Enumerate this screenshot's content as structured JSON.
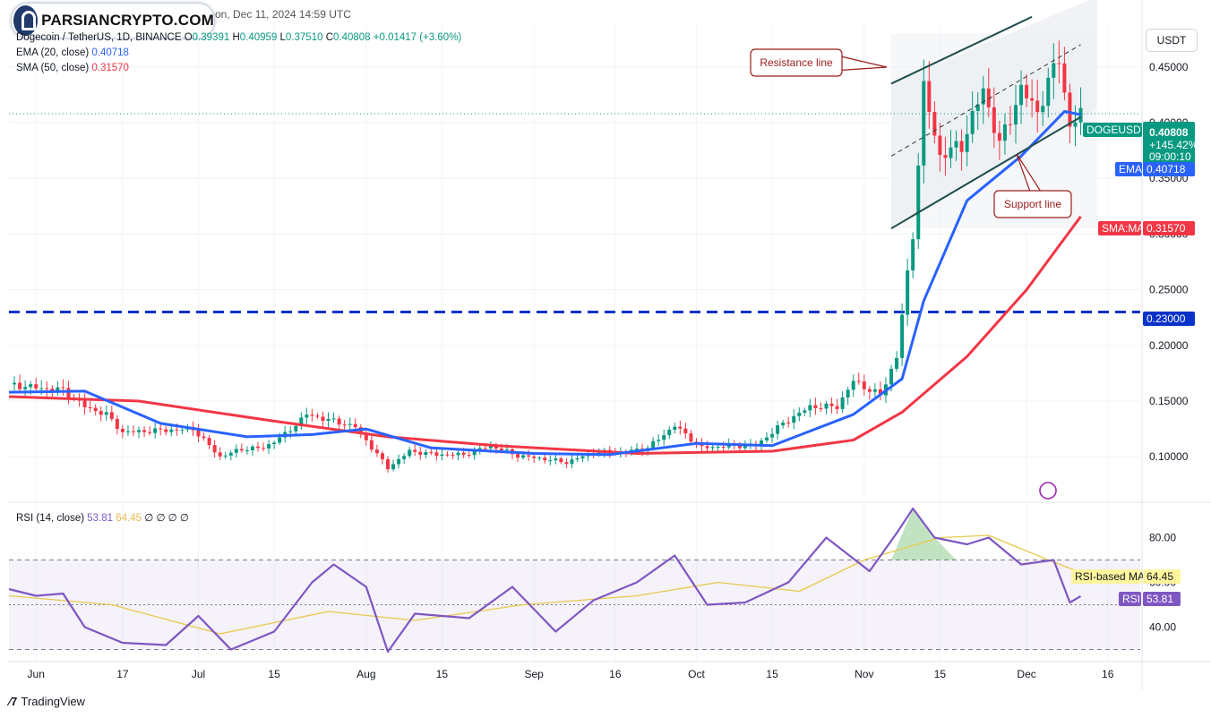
{
  "header": {
    "title_tail": "on, Dec 11, 2024 14:59 UTC",
    "symbol": "Dogecoin / TetherUS, 1D, BINANCE",
    "ohlc": [
      {
        "k": "O",
        "v": "0.39391"
      },
      {
        "k": "H",
        "v": "0.40959"
      },
      {
        "k": "L",
        "v": "0.37510"
      },
      {
        "k": "C",
        "v": "0.40808"
      }
    ],
    "change": "+0.01417 (+3.60%)",
    "ema_label": "EMA (20, close)",
    "ema_value": "0.40718",
    "sma_label": "SMA (50, close)",
    "sma_value": "0.31570",
    "rsi_label": "RSI (14, close)",
    "rsi_value": "53.81",
    "rsi_ma_value": "64.45",
    "rsi_extras": "∅ ∅ ∅ ∅"
  },
  "watermark": {
    "text": "PARSIANCRYPTO.COM"
  },
  "currency": "USDT",
  "footer": {
    "brand": "TradingView"
  },
  "annotations": {
    "resistance": "Resistance line",
    "support": "Support line"
  },
  "badges": {
    "symbol": "DOGEUSDT",
    "price": "0.40808",
    "change_pct": "+145.42%",
    "countdown": "09:00:10",
    "ema_tag": "EMA",
    "ema_val": "0.40718",
    "sma_tag": "SMA:MA",
    "sma_val": "0.31570",
    "level": "0.23000",
    "rsi_ma_tag": "RSI-based MA",
    "rsi_ma_val": "64.45",
    "rsi_tag": "RSI",
    "rsi_val": "53.81"
  },
  "colors": {
    "up": "#089981",
    "down": "#f23645",
    "ema": "#2962ff",
    "sma": "#f23645",
    "rsi": "#7e57c2",
    "rsi_ma": "#e8c94b",
    "hline": "#0a32c8",
    "channel": "#1f4e4e"
  },
  "chart_data": [
    {
      "type": "candlestick",
      "title": "Dogecoin / TetherUS, 1D, BINANCE",
      "x_ticks": [
        "Jun",
        "17",
        "Jul",
        "15",
        "Aug",
        "15",
        "Sep",
        "16",
        "Oct",
        "15",
        "Nov",
        "15",
        "Dec",
        "16"
      ],
      "y_ticks": [
        "0.45000",
        "0.40000",
        "0.35000",
        "0.30000",
        "0.25000",
        "0.20000",
        "0.15000",
        "0.10000"
      ],
      "y_range": [
        0.06,
        0.49
      ],
      "x_range": [
        "2024-05-27",
        "2024-12-22"
      ],
      "horizontal_line": 0.23,
      "closes": [
        {
          "date": "2024-05-27",
          "close": 0.165
        },
        {
          "date": "2024-06-01",
          "close": 0.162
        },
        {
          "date": "2024-06-06",
          "close": 0.16
        },
        {
          "date": "2024-06-10",
          "close": 0.145
        },
        {
          "date": "2024-06-14",
          "close": 0.138
        },
        {
          "date": "2024-06-17",
          "close": 0.122
        },
        {
          "date": "2024-06-21",
          "close": 0.123
        },
        {
          "date": "2024-06-25",
          "close": 0.124
        },
        {
          "date": "2024-06-30",
          "close": 0.125
        },
        {
          "date": "2024-07-05",
          "close": 0.1
        },
        {
          "date": "2024-07-09",
          "close": 0.107
        },
        {
          "date": "2024-07-13",
          "close": 0.108
        },
        {
          "date": "2024-07-17",
          "close": 0.12
        },
        {
          "date": "2024-07-21",
          "close": 0.138
        },
        {
          "date": "2024-07-26",
          "close": 0.132
        },
        {
          "date": "2024-07-30",
          "close": 0.127
        },
        {
          "date": "2024-08-05",
          "close": 0.09
        },
        {
          "date": "2024-08-09",
          "close": 0.105
        },
        {
          "date": "2024-08-14",
          "close": 0.102
        },
        {
          "date": "2024-08-19",
          "close": 0.102
        },
        {
          "date": "2024-08-24",
          "close": 0.11
        },
        {
          "date": "2024-08-29",
          "close": 0.101
        },
        {
          "date": "2024-09-03",
          "close": 0.098
        },
        {
          "date": "2024-09-07",
          "close": 0.095
        },
        {
          "date": "2024-09-12",
          "close": 0.104
        },
        {
          "date": "2024-09-17",
          "close": 0.104
        },
        {
          "date": "2024-09-22",
          "close": 0.108
        },
        {
          "date": "2024-09-27",
          "close": 0.128
        },
        {
          "date": "2024-10-02",
          "close": 0.108
        },
        {
          "date": "2024-10-07",
          "close": 0.11
        },
        {
          "date": "2024-10-12",
          "close": 0.11
        },
        {
          "date": "2024-10-17",
          "close": 0.13
        },
        {
          "date": "2024-10-22",
          "close": 0.145
        },
        {
          "date": "2024-10-27",
          "close": 0.145
        },
        {
          "date": "2024-10-30",
          "close": 0.168
        },
        {
          "date": "2024-11-04",
          "close": 0.155
        },
        {
          "date": "2024-11-07",
          "close": 0.19
        },
        {
          "date": "2024-11-10",
          "close": 0.3
        },
        {
          "date": "2024-11-12",
          "close": 0.43
        },
        {
          "date": "2024-11-15",
          "close": 0.37
        },
        {
          "date": "2024-11-19",
          "close": 0.38
        },
        {
          "date": "2024-11-23",
          "close": 0.43
        },
        {
          "date": "2024-11-26",
          "close": 0.38
        },
        {
          "date": "2024-11-30",
          "close": 0.43
        },
        {
          "date": "2024-12-03",
          "close": 0.41
        },
        {
          "date": "2024-12-07",
          "close": 0.46
        },
        {
          "date": "2024-12-09",
          "close": 0.395
        },
        {
          "date": "2024-12-11",
          "close": 0.408
        }
      ],
      "ema20": [
        {
          "date": "2024-05-27",
          "value": 0.158
        },
        {
          "date": "2024-06-10",
          "value": 0.159
        },
        {
          "date": "2024-06-24",
          "value": 0.13
        },
        {
          "date": "2024-07-10",
          "value": 0.118
        },
        {
          "date": "2024-07-22",
          "value": 0.12
        },
        {
          "date": "2024-08-01",
          "value": 0.125
        },
        {
          "date": "2024-08-13",
          "value": 0.108
        },
        {
          "date": "2024-09-01",
          "value": 0.103
        },
        {
          "date": "2024-09-15",
          "value": 0.102
        },
        {
          "date": "2024-10-01",
          "value": 0.112
        },
        {
          "date": "2024-10-15",
          "value": 0.11
        },
        {
          "date": "2024-10-30",
          "value": 0.138
        },
        {
          "date": "2024-11-08",
          "value": 0.17
        },
        {
          "date": "2024-11-12",
          "value": 0.24
        },
        {
          "date": "2024-11-20",
          "value": 0.33
        },
        {
          "date": "2024-11-30",
          "value": 0.37
        },
        {
          "date": "2024-12-08",
          "value": 0.41
        },
        {
          "date": "2024-12-11",
          "value": 0.40718
        }
      ],
      "sma50": [
        {
          "date": "2024-05-27",
          "value": 0.154
        },
        {
          "date": "2024-06-20",
          "value": 0.15
        },
        {
          "date": "2024-07-15",
          "value": 0.132
        },
        {
          "date": "2024-08-05",
          "value": 0.118
        },
        {
          "date": "2024-08-25",
          "value": 0.11
        },
        {
          "date": "2024-09-20",
          "value": 0.103
        },
        {
          "date": "2024-10-15",
          "value": 0.105
        },
        {
          "date": "2024-10-30",
          "value": 0.115
        },
        {
          "date": "2024-11-08",
          "value": 0.14
        },
        {
          "date": "2024-11-20",
          "value": 0.19
        },
        {
          "date": "2024-12-01",
          "value": 0.25
        },
        {
          "date": "2024-12-11",
          "value": 0.3157
        }
      ],
      "resistance_line": [
        {
          "date": "2024-11-06",
          "value": 0.435
        },
        {
          "date": "2024-12-02",
          "value": 0.495
        }
      ],
      "support_line": [
        {
          "date": "2024-11-06",
          "value": 0.305
        },
        {
          "date": "2024-12-11",
          "value": 0.405
        }
      ],
      "mid_line": [
        {
          "date": "2024-11-06",
          "value": 0.37
        },
        {
          "date": "2024-12-11",
          "value": 0.47
        }
      ]
    },
    {
      "type": "line",
      "title": "RSI (14, close)",
      "y_ticks": [
        "80.00",
        "60.00",
        "40.00"
      ],
      "y_range": [
        25,
        95
      ],
      "bands": [
        30,
        50,
        70
      ],
      "rsi": [
        {
          "date": "2024-05-27",
          "value": 57
        },
        {
          "date": "2024-06-01",
          "value": 54
        },
        {
          "date": "2024-06-06",
          "value": 55
        },
        {
          "date": "2024-06-10",
          "value": 40
        },
        {
          "date": "2024-06-17",
          "value": 33
        },
        {
          "date": "2024-06-25",
          "value": 32
        },
        {
          "date": "2024-07-01",
          "value": 45
        },
        {
          "date": "2024-07-07",
          "value": 30
        },
        {
          "date": "2024-07-15",
          "value": 38
        },
        {
          "date": "2024-07-22",
          "value": 60
        },
        {
          "date": "2024-07-26",
          "value": 68
        },
        {
          "date": "2024-08-01",
          "value": 58
        },
        {
          "date": "2024-08-05",
          "value": 29
        },
        {
          "date": "2024-08-10",
          "value": 46
        },
        {
          "date": "2024-08-20",
          "value": 44
        },
        {
          "date": "2024-08-28",
          "value": 58
        },
        {
          "date": "2024-09-05",
          "value": 38
        },
        {
          "date": "2024-09-12",
          "value": 52
        },
        {
          "date": "2024-09-20",
          "value": 60
        },
        {
          "date": "2024-09-27",
          "value": 72
        },
        {
          "date": "2024-10-03",
          "value": 50
        },
        {
          "date": "2024-10-10",
          "value": 51
        },
        {
          "date": "2024-10-18",
          "value": 60
        },
        {
          "date": "2024-10-25",
          "value": 80
        },
        {
          "date": "2024-11-02",
          "value": 65
        },
        {
          "date": "2024-11-07",
          "value": 82
        },
        {
          "date": "2024-11-10",
          "value": 93
        },
        {
          "date": "2024-11-14",
          "value": 80
        },
        {
          "date": "2024-11-20",
          "value": 77
        },
        {
          "date": "2024-11-24",
          "value": 80
        },
        {
          "date": "2024-11-30",
          "value": 68
        },
        {
          "date": "2024-12-06",
          "value": 70
        },
        {
          "date": "2024-12-09",
          "value": 51
        },
        {
          "date": "2024-12-11",
          "value": 53.81
        }
      ],
      "rsi_ma": [
        {
          "date": "2024-05-27",
          "value": 54
        },
        {
          "date": "2024-06-15",
          "value": 50
        },
        {
          "date": "2024-07-05",
          "value": 37
        },
        {
          "date": "2024-07-25",
          "value": 47
        },
        {
          "date": "2024-08-10",
          "value": 43
        },
        {
          "date": "2024-08-30",
          "value": 50
        },
        {
          "date": "2024-09-20",
          "value": 54
        },
        {
          "date": "2024-10-05",
          "value": 60
        },
        {
          "date": "2024-10-20",
          "value": 56
        },
        {
          "date": "2024-11-01",
          "value": 70
        },
        {
          "date": "2024-11-15",
          "value": 80
        },
        {
          "date": "2024-11-24",
          "value": 81
        },
        {
          "date": "2024-12-05",
          "value": 70
        },
        {
          "date": "2024-12-11",
          "value": 64.45
        }
      ]
    }
  ]
}
